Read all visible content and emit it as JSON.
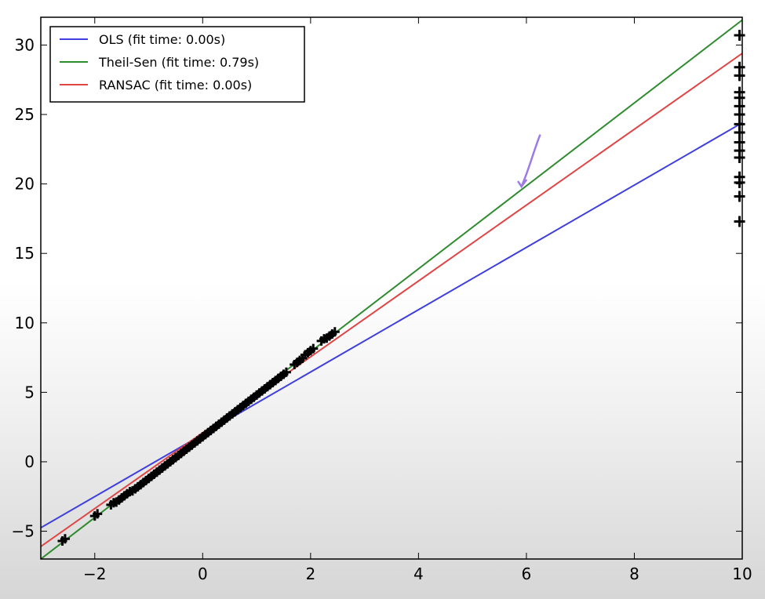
{
  "chart_data": {
    "type": "scatter",
    "title": "",
    "xlabel": "",
    "ylabel": "",
    "xlim": [
      -3,
      10
    ],
    "ylim": [
      -7,
      32
    ],
    "xticks": [
      -2,
      0,
      2,
      4,
      6,
      8,
      10
    ],
    "yticks": [
      -5,
      0,
      5,
      10,
      15,
      20,
      25,
      30
    ],
    "xtick_labels": [
      "−2",
      "0",
      "2",
      "4",
      "6",
      "8",
      "10"
    ],
    "ytick_labels": [
      "−5",
      "0",
      "5",
      "10",
      "15",
      "20",
      "25",
      "30"
    ],
    "grid": false,
    "legend_position": "top-left",
    "marker": "+",
    "series": [
      {
        "name": "OLS (fit time: 0.00s)",
        "color": "#3f3fe0",
        "x": [
          -3,
          10
        ],
        "y": [
          -4.75,
          24.4
        ]
      },
      {
        "name": "Theil-Sen (fit time: 0.79s)",
        "color": "#2e8b2e",
        "x": [
          -3,
          10
        ],
        "y": [
          -7.0,
          31.8
        ]
      },
      {
        "name": "RANSAC (fit time: 0.00s)",
        "color": "#e04444",
        "x": [
          -3,
          10
        ],
        "y": [
          -6.1,
          29.4
        ]
      }
    ],
    "points": {
      "inliers": [
        [
          -2.6,
          -5.7
        ],
        [
          -2.0,
          -3.9
        ],
        [
          -1.7,
          -3.1
        ],
        [
          -1.6,
          -2.9
        ],
        [
          -1.5,
          -2.6
        ],
        [
          -1.4,
          -2.3
        ],
        [
          -1.3,
          -2.1
        ],
        [
          -1.2,
          -1.8
        ],
        [
          -1.1,
          -1.5
        ],
        [
          -1.0,
          -1.2
        ],
        [
          -0.9,
          -0.9
        ],
        [
          -0.8,
          -0.6
        ],
        [
          -0.7,
          -0.3
        ],
        [
          -0.6,
          0.0
        ],
        [
          -0.5,
          0.3
        ],
        [
          -0.4,
          0.6
        ],
        [
          -0.3,
          0.9
        ],
        [
          -0.2,
          1.2
        ],
        [
          -0.1,
          1.5
        ],
        [
          0.0,
          1.8
        ],
        [
          0.1,
          2.1
        ],
        [
          0.2,
          2.4
        ],
        [
          0.3,
          2.7
        ],
        [
          0.4,
          3.0
        ],
        [
          0.5,
          3.3
        ],
        [
          0.6,
          3.6
        ],
        [
          0.7,
          3.9
        ],
        [
          0.8,
          4.2
        ],
        [
          0.9,
          4.5
        ],
        [
          1.0,
          4.8
        ],
        [
          1.1,
          5.1
        ],
        [
          1.2,
          5.4
        ],
        [
          1.3,
          5.7
        ],
        [
          1.4,
          6.0
        ],
        [
          1.5,
          6.3
        ],
        [
          1.7,
          7.0
        ],
        [
          1.8,
          7.3
        ],
        [
          1.9,
          7.7
        ],
        [
          2.0,
          8.0
        ],
        [
          2.2,
          8.7
        ],
        [
          2.3,
          8.9
        ],
        [
          2.4,
          9.2
        ]
      ],
      "outliers": [
        [
          9.95,
          30.7
        ],
        [
          9.95,
          28.4
        ],
        [
          9.95,
          27.8
        ],
        [
          9.95,
          26.6
        ],
        [
          9.95,
          26.2
        ],
        [
          9.95,
          25.6
        ],
        [
          9.95,
          25.0
        ],
        [
          9.95,
          24.3
        ],
        [
          9.95,
          23.7
        ],
        [
          9.95,
          23.0
        ],
        [
          9.95,
          22.4
        ],
        [
          9.95,
          21.9
        ],
        [
          9.95,
          20.5
        ],
        [
          9.95,
          20.1
        ],
        [
          9.95,
          19.1
        ],
        [
          9.95,
          17.3
        ]
      ]
    },
    "annotation": {
      "type": "hand-drawn-arrow",
      "color": "#9b7be8",
      "x": [
        6.25,
        5.85
      ],
      "y": [
        23.5,
        19.7
      ]
    }
  }
}
